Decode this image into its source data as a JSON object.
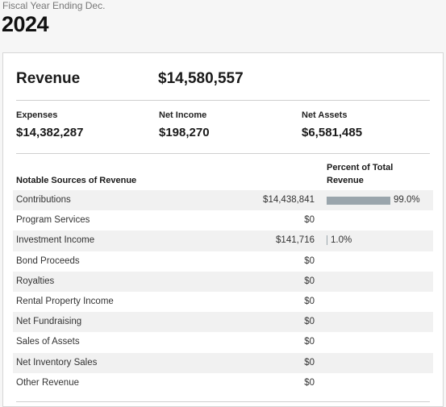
{
  "fiscal": {
    "label": "Fiscal Year Ending Dec.",
    "year": "2024"
  },
  "revenue": {
    "label": "Revenue",
    "value": "$14,580,557"
  },
  "summary": {
    "expenses_label": "Expenses",
    "expenses_value": "$14,382,287",
    "net_income_label": "Net Income",
    "net_income_value": "$198,270",
    "net_assets_label": "Net Assets",
    "net_assets_value": "$6,581,485"
  },
  "table": {
    "sources_header": "Notable Sources of Revenue",
    "percent_header": "Percent of Total Revenue",
    "rows": [
      {
        "name": "Contributions",
        "amount": "$14,438,841",
        "percent_label": "99.0%",
        "percent": 99.0
      },
      {
        "name": "Program Services",
        "amount": "$0",
        "percent_label": "",
        "percent": 0
      },
      {
        "name": "Investment Income",
        "amount": "$141,716",
        "percent_label": "1.0%",
        "percent": 1.0
      },
      {
        "name": "Bond Proceeds",
        "amount": "$0",
        "percent_label": "",
        "percent": 0
      },
      {
        "name": "Royalties",
        "amount": "$0",
        "percent_label": "",
        "percent": 0
      },
      {
        "name": "Rental Property Income",
        "amount": "$0",
        "percent_label": "",
        "percent": 0
      },
      {
        "name": "Net Fundraising",
        "amount": "$0",
        "percent_label": "",
        "percent": 0
      },
      {
        "name": "Sales of Assets",
        "amount": "$0",
        "percent_label": "",
        "percent": 0
      },
      {
        "name": "Net Inventory Sales",
        "amount": "$0",
        "percent_label": "",
        "percent": 0
      },
      {
        "name": "Other Revenue",
        "amount": "$0",
        "percent_label": "",
        "percent": 0
      }
    ]
  },
  "colors": {
    "bar": "#9aa5ac",
    "row_shade": "#f1f1f1"
  }
}
